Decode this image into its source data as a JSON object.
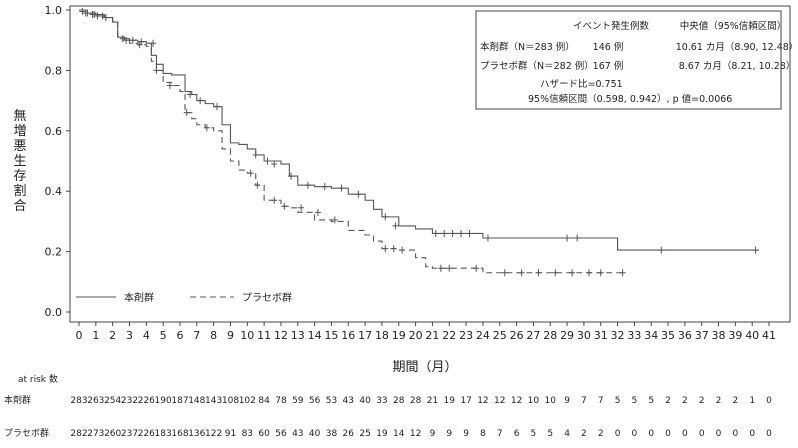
{
  "chart_data": {
    "type": "line",
    "xlabel": "期間（月）",
    "ylabel": "無増悪生存割合",
    "xlim": [
      0,
      41
    ],
    "ylim": [
      0,
      1.0
    ],
    "x_ticks": [
      0,
      1,
      2,
      3,
      4,
      5,
      6,
      7,
      8,
      9,
      10,
      11,
      12,
      13,
      14,
      15,
      16,
      17,
      18,
      19,
      20,
      21,
      22,
      23,
      24,
      25,
      26,
      27,
      28,
      29,
      30,
      31,
      32,
      33,
      34,
      35,
      36,
      37,
      38,
      39,
      40,
      41
    ],
    "y_ticks": [
      0.0,
      0.2,
      0.4,
      0.6,
      0.8,
      1.0
    ],
    "y_tick_labels": [
      "0.0",
      "0.2",
      "0.4",
      "0.6",
      "0.8",
      "1.0"
    ],
    "grid": false,
    "legend": {
      "placement": "bottom-left"
    },
    "series": [
      {
        "name": "本剤群",
        "style": "solid",
        "color": "#555555",
        "x": [
          0,
          0.5,
          1,
          1.5,
          2,
          2.3,
          2.7,
          3,
          3.5,
          4,
          4.3,
          4.6,
          5,
          5.5,
          6,
          6.3,
          6.7,
          7,
          7.5,
          8,
          8.5,
          9,
          9.5,
          10,
          10.5,
          11,
          12,
          12.5,
          13,
          14,
          15,
          16,
          17,
          17.5,
          18,
          19,
          20,
          21,
          22,
          23,
          24,
          25,
          26,
          27,
          28,
          29,
          30,
          31,
          32,
          33,
          34,
          35,
          36,
          37,
          38,
          39,
          40,
          40.4
        ],
        "y": [
          1.0,
          0.99,
          0.985,
          0.975,
          0.96,
          0.91,
          0.905,
          0.9,
          0.895,
          0.89,
          0.85,
          0.82,
          0.79,
          0.785,
          0.785,
          0.73,
          0.72,
          0.7,
          0.69,
          0.68,
          0.62,
          0.56,
          0.555,
          0.54,
          0.52,
          0.5,
          0.49,
          0.45,
          0.42,
          0.415,
          0.41,
          0.39,
          0.37,
          0.34,
          0.315,
          0.285,
          0.275,
          0.26,
          0.26,
          0.26,
          0.245,
          0.245,
          0.245,
          0.245,
          0.245,
          0.245,
          0.245,
          0.245,
          0.205,
          0.205,
          0.205,
          0.205,
          0.205,
          0.205,
          0.205,
          0.205,
          0.205,
          0.205
        ],
        "censor_x": [
          0.2,
          0.5,
          0.8,
          1.1,
          1.6,
          2.6,
          3.2,
          3.7,
          4.4,
          6.6,
          7.2,
          8.2,
          10.5,
          11.2,
          11.6,
          12.6,
          13.6,
          14.6,
          15.6,
          16.6,
          18.2,
          18.8,
          21.2,
          21.7,
          22.2,
          22.7,
          23.2,
          24.3,
          29.0,
          29.6,
          34.6,
          40.2
        ],
        "censor_y": [
          0.995,
          0.99,
          0.985,
          0.98,
          0.975,
          0.905,
          0.9,
          0.895,
          0.89,
          0.72,
          0.7,
          0.68,
          0.52,
          0.5,
          0.49,
          0.45,
          0.42,
          0.415,
          0.41,
          0.39,
          0.315,
          0.285,
          0.26,
          0.26,
          0.26,
          0.26,
          0.26,
          0.245,
          0.245,
          0.245,
          0.205,
          0.205
        ]
      },
      {
        "name": "プラセボ群",
        "style": "dashed",
        "color": "#555555",
        "x": [
          0,
          0.5,
          1,
          1.5,
          2,
          2.3,
          2.7,
          3,
          3.5,
          4,
          4.3,
          4.6,
          5,
          5.5,
          6,
          6.3,
          6.7,
          7,
          7.5,
          8,
          8.5,
          9,
          9.5,
          10,
          10.5,
          11,
          12,
          12.5,
          13,
          14,
          15,
          16,
          17,
          17.5,
          18,
          19,
          20,
          20.6,
          21,
          22,
          23,
          24,
          25,
          26,
          27,
          28,
          29,
          30,
          31,
          32.3
        ],
        "y": [
          1.0,
          0.99,
          0.985,
          0.975,
          0.96,
          0.91,
          0.9,
          0.89,
          0.885,
          0.88,
          0.83,
          0.8,
          0.76,
          0.75,
          0.73,
          0.66,
          0.64,
          0.62,
          0.61,
          0.6,
          0.54,
          0.5,
          0.47,
          0.46,
          0.42,
          0.37,
          0.35,
          0.345,
          0.33,
          0.305,
          0.3,
          0.27,
          0.255,
          0.235,
          0.21,
          0.205,
          0.18,
          0.15,
          0.145,
          0.145,
          0.145,
          0.13,
          0.13,
          0.13,
          0.13,
          0.13,
          0.13,
          0.13,
          0.13,
          0.13
        ],
        "censor_x": [
          0.4,
          0.9,
          1.4,
          2.8,
          3.6,
          4.6,
          5.4,
          6.4,
          7.6,
          10.2,
          10.6,
          11.6,
          12.2,
          13.2,
          14.2,
          15.2,
          18.2,
          18.7,
          19.2,
          21.5,
          22.0,
          23.6,
          25.3,
          26.3,
          27.3,
          28.3,
          29.3,
          30.3,
          31.0,
          32.3
        ],
        "censor_y": [
          0.99,
          0.985,
          0.98,
          0.9,
          0.885,
          0.8,
          0.75,
          0.66,
          0.61,
          0.46,
          0.42,
          0.37,
          0.35,
          0.345,
          0.33,
          0.305,
          0.21,
          0.21,
          0.205,
          0.145,
          0.145,
          0.145,
          0.13,
          0.13,
          0.13,
          0.13,
          0.13,
          0.13,
          0.13,
          0.13
        ]
      }
    ],
    "stats": {
      "header_events": "イベント発生例数",
      "header_median": "中央値（95%信頼区間）",
      "rows": [
        {
          "label": "本剤群（N＝283 例）",
          "events": "146 例",
          "median": "10.61 カ月（8.90, 12.48）"
        },
        {
          "label": "プラセボ群（N＝282 例）",
          "events": "167 例",
          "median": "8.67 カ月（8.21, 10.28）"
        }
      ],
      "hazard": "ハザード比=0.751",
      "ci": "95%信頼区間（0.598, 0.942）, p 値=0.0066"
    },
    "at_risk": {
      "title": "at risk 数",
      "rows": [
        {
          "label": "本剤群",
          "values": [
            283,
            263,
            254,
            232,
            226,
            190,
            187,
            148,
            143,
            108,
            102,
            84,
            78,
            59,
            56,
            53,
            43,
            40,
            33,
            28,
            28,
            21,
            19,
            17,
            12,
            12,
            12,
            10,
            10,
            9,
            7,
            7,
            5,
            5,
            5,
            2,
            2,
            2,
            2,
            2,
            1,
            0
          ]
        },
        {
          "label": "プラセボ群",
          "values": [
            282,
            273,
            260,
            237,
            226,
            183,
            168,
            136,
            122,
            91,
            83,
            60,
            56,
            43,
            40,
            38,
            26,
            25,
            19,
            14,
            12,
            9,
            9,
            9,
            8,
            7,
            6,
            5,
            5,
            4,
            2,
            2,
            0,
            0,
            0,
            0,
            0,
            0,
            0,
            0,
            0,
            0
          ]
        }
      ]
    }
  }
}
